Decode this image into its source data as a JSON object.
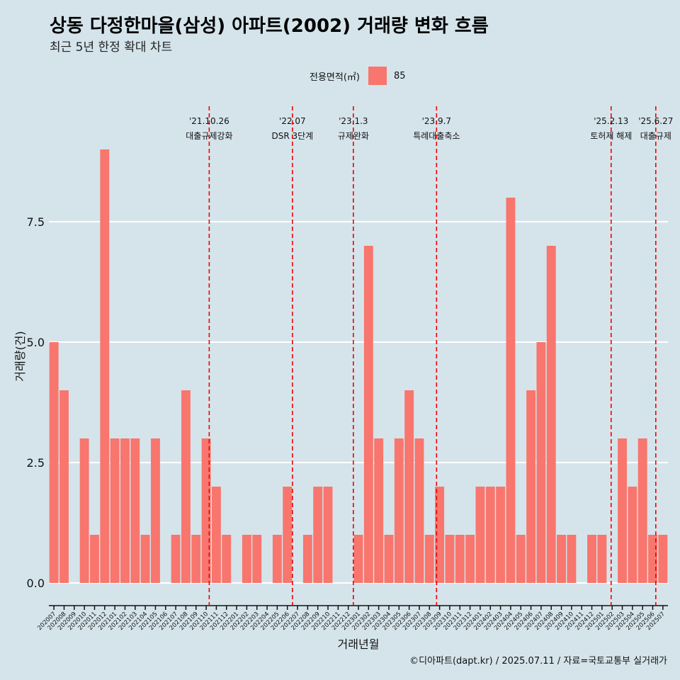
{
  "title": "상동 다정한마을(삼성) 아파트(2002) 거래량 변화 흐름",
  "subtitle": "최근 5년 한정 확대 차트",
  "caption": "©디아파트(dapt.kr) / 2025.07.11 / 자료=국토교통부 실거래가",
  "legend": {
    "title": "전용면적(㎡)",
    "items": [
      {
        "label": "85",
        "color": "#f8766d"
      }
    ]
  },
  "colors": {
    "background": "#d5e4eb",
    "bar": "#f8766d",
    "event_line": "#ee0000",
    "grid": "#ffffff"
  },
  "chart_data": {
    "type": "bar",
    "xlabel": "거래년월",
    "ylabel": "거래량(건)",
    "ylim": [
      0,
      9.2
    ],
    "yticks": [
      0,
      2.5,
      5,
      7.5
    ],
    "ytick_labels": [
      "0.0",
      "2.5",
      "5.0",
      "7.5"
    ],
    "grid": true,
    "categories": [
      "202007",
      "202008",
      "202009",
      "202010",
      "202011",
      "202012",
      "202101",
      "202102",
      "202103",
      "202104",
      "202105",
      "202106",
      "202107",
      "202108",
      "202109",
      "202110",
      "202111",
      "202112",
      "202201",
      "202202",
      "202203",
      "202204",
      "202205",
      "202206",
      "202207",
      "202208",
      "202209",
      "202210",
      "202211",
      "202212",
      "202301",
      "202302",
      "202303",
      "202304",
      "202305",
      "202306",
      "202307",
      "202308",
      "202309",
      "202310",
      "202311",
      "202312",
      "202401",
      "202402",
      "202403",
      "202404",
      "202405",
      "202406",
      "202407",
      "202408",
      "202409",
      "202410",
      "202411",
      "202412",
      "202501",
      "202502",
      "202503",
      "202504",
      "202505",
      "202506",
      "202507"
    ],
    "series": [
      {
        "name": "85",
        "values": [
          5,
          4,
          0,
          3,
          1,
          9,
          3,
          3,
          3,
          1,
          3,
          0,
          1,
          4,
          1,
          3,
          2,
          1,
          0,
          1,
          1,
          0,
          1,
          2,
          0,
          1,
          2,
          2,
          0,
          0,
          1,
          7,
          3,
          1,
          3,
          4,
          3,
          1,
          2,
          1,
          1,
          1,
          2,
          2,
          2,
          8,
          1,
          4,
          5,
          7,
          1,
          1,
          0,
          1,
          1,
          0,
          3,
          2,
          3,
          1,
          1
        ]
      }
    ],
    "annotations": [
      {
        "date": "'21.10.26",
        "label": "대출규제강화",
        "month": "202110",
        "offset": 0.3
      },
      {
        "date": "'22.07",
        "label": "DSR 3단계",
        "month": "202207",
        "offset": -0.5
      },
      {
        "date": "'23.1.3",
        "label": "규제완화",
        "month": "202301",
        "offset": -0.5
      },
      {
        "date": "'23.9.7",
        "label": "특례대출축소",
        "month": "202309",
        "offset": -0.3
      },
      {
        "date": "'25.2.13",
        "label": "토허제 해제",
        "month": "202502",
        "offset": -0.1
      },
      {
        "date": "'25.6.27",
        "label": "대출규제",
        "month": "202506",
        "offset": 0.3
      }
    ]
  }
}
